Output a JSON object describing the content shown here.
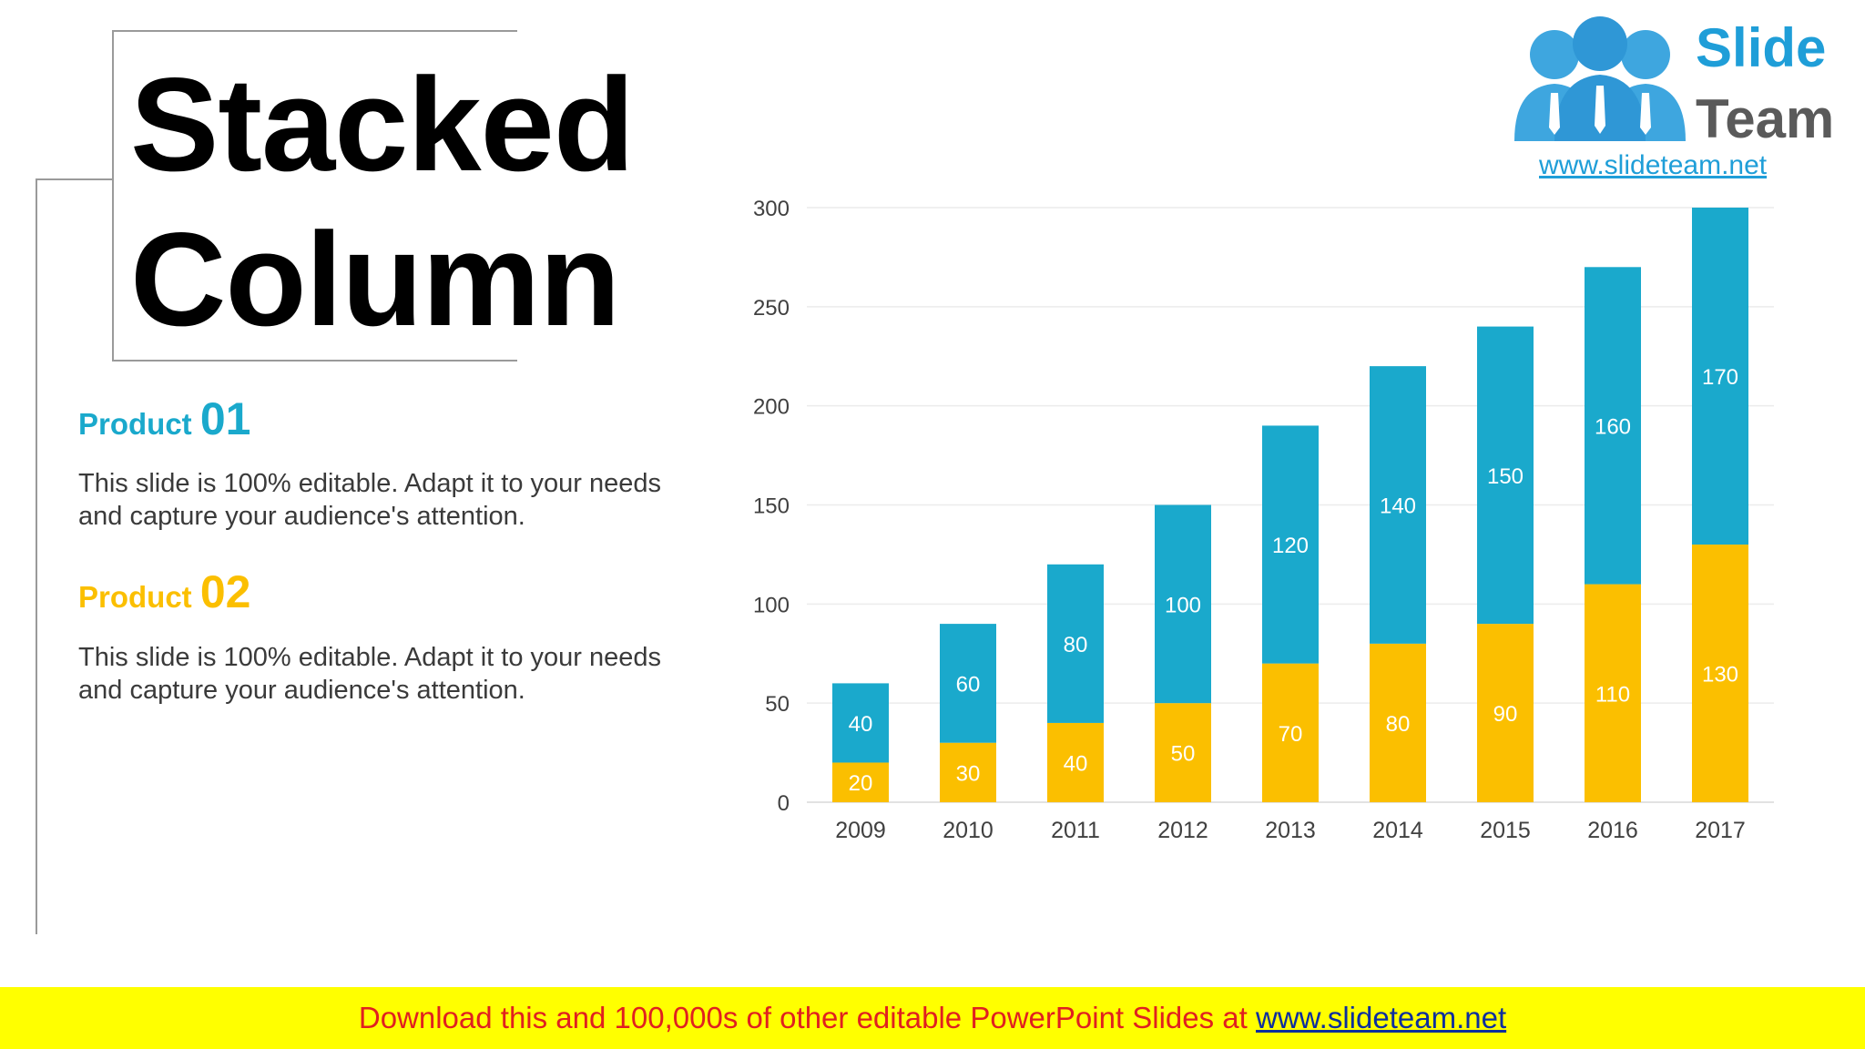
{
  "title": {
    "line1": "Stacked",
    "line2": "Column"
  },
  "products": [
    {
      "label": "Product",
      "number": "01",
      "color": "#1aa9cc",
      "description": "This slide is 100% editable. Adapt it to your needs and capture your audience's attention."
    },
    {
      "label": "Product",
      "number": "02",
      "color": "#fbbf00",
      "description": "This slide is 100% editable. Adapt it to your needs and capture your audience's attention."
    }
  ],
  "logo": {
    "word1": "Slide",
    "word2": "Team",
    "url": "www.slideteam.net",
    "icon": "people-logo-icon"
  },
  "banner": {
    "text": "Download this and 100,000s of other editable PowerPoint Slides at ",
    "link": "www.slideteam.net",
    "background": "#ffff00",
    "text_color": "#e02020"
  },
  "chart_data": {
    "type": "bar",
    "stacked": true,
    "categories": [
      "2009",
      "2010",
      "2011",
      "2012",
      "2013",
      "2014",
      "2015",
      "2016",
      "2017"
    ],
    "series": [
      {
        "color": "#fbbf00",
        "values": [
          20,
          30,
          40,
          50,
          70,
          80,
          90,
          110,
          130
        ]
      },
      {
        "color": "#1aa9cc",
        "values": [
          40,
          60,
          80,
          100,
          120,
          140,
          150,
          160,
          170
        ]
      }
    ],
    "ylim": [
      0,
      300
    ],
    "yticks": [
      0,
      50,
      100,
      150,
      200,
      250,
      300
    ],
    "grid": true,
    "legend": "none",
    "data_labels": true
  }
}
